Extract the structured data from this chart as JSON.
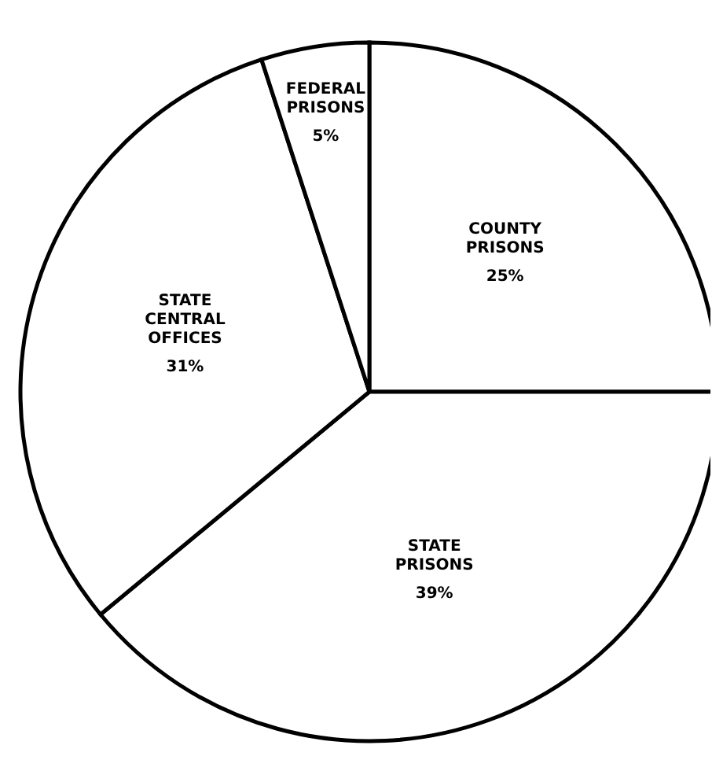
{
  "chart_data": {
    "type": "pie",
    "categories": [
      "COUNTY PRISONS",
      "STATE PRISONS",
      "STATE CENTRAL OFFICES",
      "FEDERAL PRISONS"
    ],
    "values": [
      25,
      39,
      31,
      5
    ],
    "colors": [
      "#ffffff",
      "#ffffff",
      "#ffffff",
      "#ffffff"
    ],
    "value_labels": [
      "25%",
      "39%",
      "31%",
      "5%"
    ],
    "legend": false
  }
}
